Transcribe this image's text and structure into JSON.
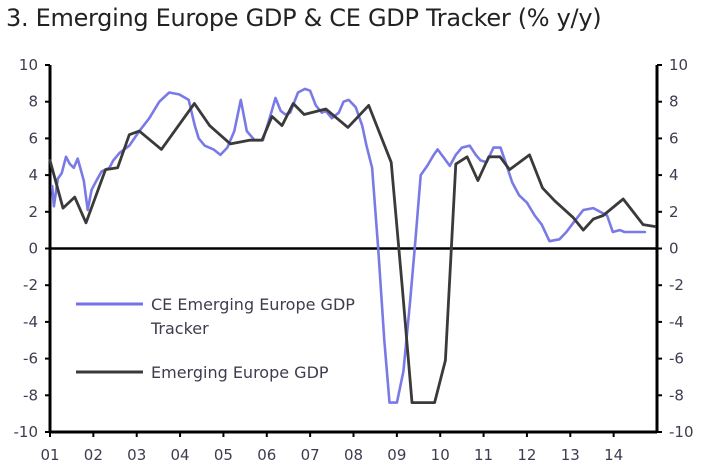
{
  "chart_data": {
    "type": "line",
    "title": "3. Emerging Europe GDP & CE GDP Tracker (% y/y)",
    "xlabel": "",
    "ylabel": "",
    "xlim": [
      2001,
      2015
    ],
    "ylim": [
      -10,
      10
    ],
    "x_tick_labels": [
      "01",
      "02",
      "03",
      "04",
      "05",
      "06",
      "07",
      "08",
      "09",
      "10",
      "11",
      "12",
      "13",
      "14"
    ],
    "y_ticks_left": [
      10,
      8,
      6,
      4,
      2,
      0,
      -2,
      -4,
      -6,
      -8,
      -10
    ],
    "y_ticks_right": [
      10,
      8,
      6,
      4,
      2,
      0,
      -2,
      -4,
      -6,
      -8,
      -10
    ],
    "grid": false,
    "legend_position": "center-left",
    "series": [
      {
        "name": "CE Emerging Europe GDP Tracker",
        "legend_label_lines": [
          "CE Emerging Europe GDP",
          "Tracker"
        ],
        "color": "#7373e6",
        "x": [
          2001.05,
          2001.09,
          2001.18,
          2001.27,
          2001.37,
          2001.46,
          2001.55,
          2001.64,
          2001.78,
          2001.87,
          2001.96,
          2002.05,
          2002.19,
          2002.37,
          2002.46,
          2002.6,
          2002.83,
          2003.06,
          2003.29,
          2003.52,
          2003.75,
          2003.98,
          2004.2,
          2004.34,
          2004.43,
          2004.57,
          2004.77,
          2004.93,
          2005.09,
          2005.25,
          2005.4,
          2005.54,
          2005.72,
          2005.91,
          2006.09,
          2006.2,
          2006.32,
          2006.43,
          2006.54,
          2006.72,
          2006.88,
          2007.0,
          2007.13,
          2007.27,
          2007.36,
          2007.5,
          2007.66,
          2007.77,
          2007.89,
          2008.05,
          2008.2,
          2008.3,
          2008.43,
          2008.57,
          2008.71,
          2008.83,
          2009.0,
          2009.15,
          2009.3,
          2009.43,
          2009.55,
          2009.7,
          2009.85,
          2009.94,
          2010.1,
          2010.22,
          2010.36,
          2010.5,
          2010.68,
          2010.82,
          2010.93,
          2011.07,
          2011.23,
          2011.39,
          2011.55,
          2011.66,
          2011.82,
          2012.0,
          2012.18,
          2012.34,
          2012.52,
          2012.75,
          2012.91,
          2013.07,
          2013.3,
          2013.53,
          2013.69,
          2013.85,
          2013.98,
          2014.14,
          2014.25,
          2014.48,
          2014.6,
          2014.72
        ],
        "values": [
          3.4,
          2.3,
          3.8,
          4.1,
          5.0,
          4.6,
          4.4,
          4.9,
          3.7,
          2.1,
          3.2,
          3.6,
          4.2,
          4.4,
          4.8,
          5.2,
          5.6,
          6.4,
          7.1,
          8.0,
          8.5,
          8.4,
          8.1,
          6.7,
          6.0,
          5.6,
          5.4,
          5.1,
          5.5,
          6.4,
          8.1,
          6.4,
          5.9,
          5.9,
          7.3,
          8.2,
          7.5,
          7.3,
          7.4,
          8.5,
          8.7,
          8.6,
          7.8,
          7.4,
          7.5,
          7.1,
          7.4,
          8.0,
          8.1,
          7.7,
          6.7,
          5.6,
          4.4,
          0.0,
          -5.0,
          -8.4,
          -8.4,
          -6.7,
          -3.0,
          0.5,
          4.0,
          4.5,
          5.1,
          5.4,
          4.9,
          4.5,
          5.1,
          5.5,
          5.6,
          5.1,
          4.8,
          4.7,
          5.5,
          5.5,
          4.4,
          3.6,
          2.9,
          2.5,
          1.8,
          1.3,
          0.4,
          0.5,
          0.9,
          1.4,
          2.1,
          2.2,
          2.0,
          1.8,
          0.9,
          1.0,
          0.9,
          0.9,
          0.9,
          0.9
        ]
      },
      {
        "name": "Emerging Europe GDP",
        "legend_label_lines": [
          "Emerging Europe GDP"
        ],
        "color": "#3a3a3a",
        "x": [
          2001.0,
          2001.3,
          2001.57,
          2001.83,
          2002.28,
          2002.56,
          2002.83,
          2003.06,
          2003.57,
          2004.33,
          2004.68,
          2005.16,
          2005.6,
          2005.89,
          2006.12,
          2006.35,
          2006.61,
          2006.86,
          2007.36,
          2007.87,
          2008.35,
          2008.87,
          2009.12,
          2009.35,
          2009.87,
          2010.12,
          2010.36,
          2010.62,
          2010.87,
          2011.12,
          2011.38,
          2011.6,
          2012.06,
          2012.36,
          2012.64,
          2013.06,
          2013.3,
          2013.53,
          2013.76,
          2014.22,
          2014.68,
          2014.95
        ],
        "values": [
          4.8,
          2.2,
          2.8,
          1.4,
          4.3,
          4.4,
          6.2,
          6.4,
          5.4,
          7.9,
          6.7,
          5.7,
          5.9,
          5.9,
          7.2,
          6.7,
          7.9,
          7.3,
          7.6,
          6.6,
          7.8,
          4.7,
          -2.0,
          -8.4,
          -8.4,
          -6.1,
          4.6,
          5.0,
          3.7,
          5.0,
          5.0,
          4.3,
          5.1,
          3.3,
          2.6,
          1.7,
          1.0,
          1.6,
          1.8,
          2.7,
          1.3,
          1.2
        ]
      }
    ]
  }
}
